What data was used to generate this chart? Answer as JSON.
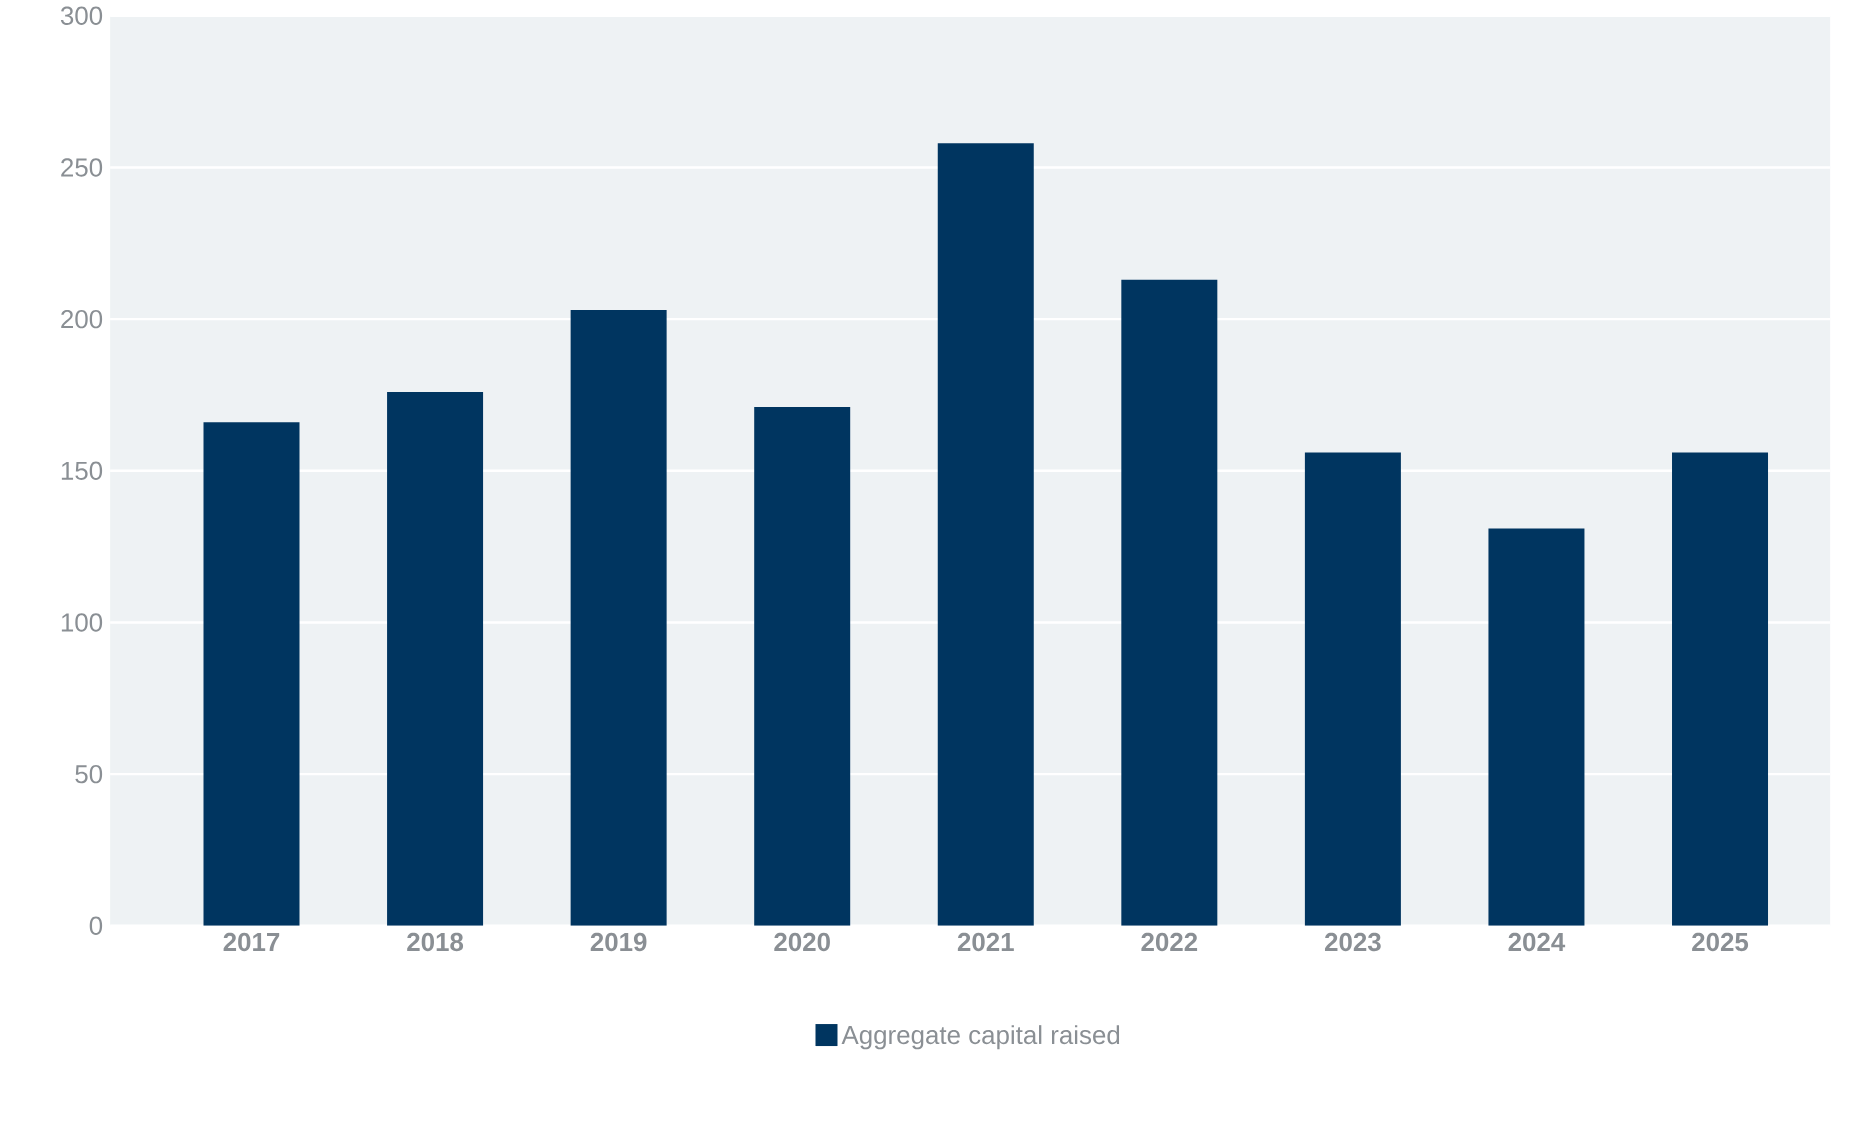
{
  "chart_data": {
    "type": "bar",
    "categories": [
      "2017",
      "2018",
      "2019",
      "2020",
      "2021",
      "2022",
      "2023",
      "2024",
      "2025"
    ],
    "series": [
      {
        "name": "Aggregate capital raised",
        "color": "#003560",
        "values": [
          166,
          176,
          203,
          171,
          258,
          213,
          156,
          131,
          156
        ]
      }
    ],
    "ylim": [
      0,
      300
    ],
    "yticks": [
      0,
      50,
      100,
      150,
      200,
      250,
      300
    ],
    "grid": "y",
    "legend": "bottom"
  }
}
